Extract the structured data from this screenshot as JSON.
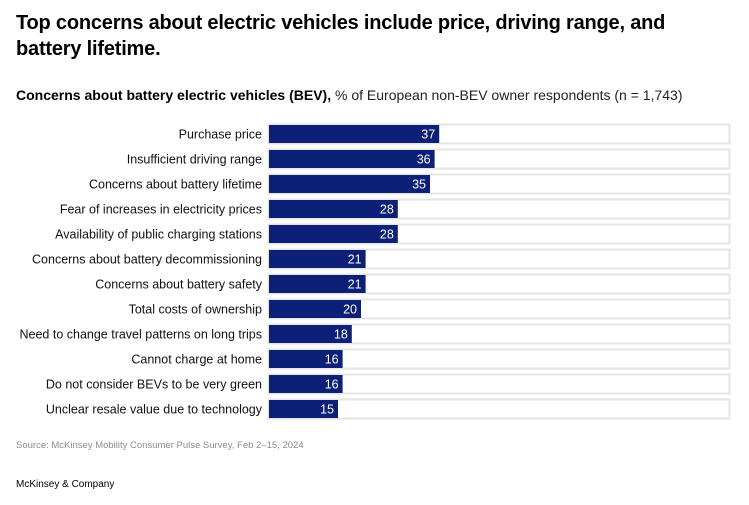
{
  "header": {
    "title": "Top concerns about electric vehicles include price, driving range, and battery lifetime.",
    "subtitle_bold": "Concerns about battery electric vehicles (BEV),",
    "subtitle_rest": " % of European non-BEV owner respondents (n = 1,743)"
  },
  "footer": {
    "source": "Source: McKinsey Mobility Consumer Pulse Survey, Feb 2–15, 2024",
    "brand": "McKinsey & Company"
  },
  "colors": {
    "bar": "#0b2076",
    "track_border": "#e4e4e4",
    "track_fill": "#ffffff",
    "value_label": "#ffffff"
  },
  "chart_data": {
    "type": "bar",
    "orientation": "horizontal",
    "title": "Concerns about battery electric vehicles (BEV)",
    "xlabel": "% of European non-BEV owner respondents (n = 1,743)",
    "ylabel": "",
    "xlim": [
      0,
      100
    ],
    "grid": false,
    "legend": "none",
    "categories": [
      "Purchase price",
      "Insufficient driving range",
      "Concerns about battery lifetime",
      "Fear of increases in electricity prices",
      "Availability of public charging stations",
      "Concerns about battery decommissioning",
      "Concerns about battery safety",
      "Total costs of ownership",
      "Need to change travel patterns on long trips",
      "Cannot charge at home",
      "Do not consider BEVs to be very green",
      "Unclear resale value due to technology"
    ],
    "values": [
      37,
      36,
      35,
      28,
      28,
      21,
      21,
      20,
      18,
      16,
      16,
      15
    ]
  }
}
